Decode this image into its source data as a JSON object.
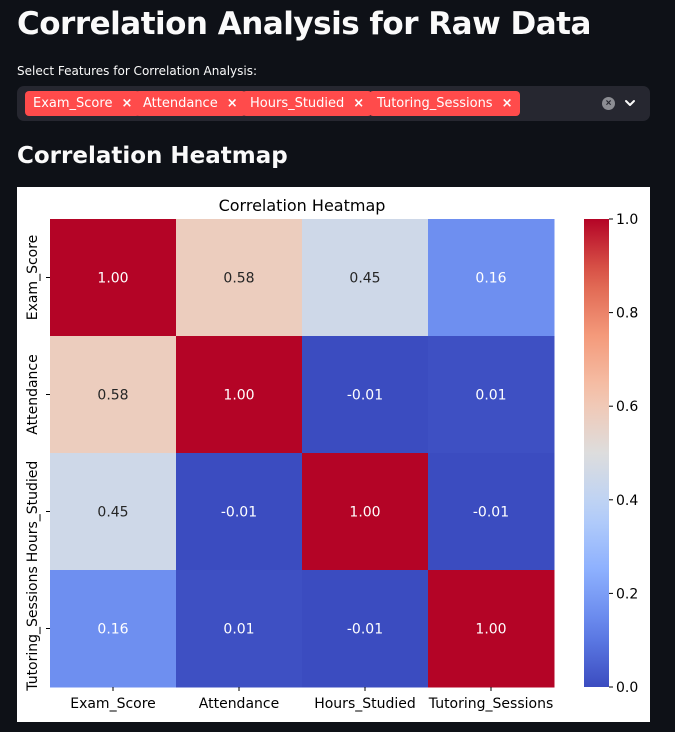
{
  "page": {
    "title": "Correlation Analysis for Raw Data"
  },
  "selector": {
    "label": "Select Features for Correlation Analysis:",
    "selected": [
      "Exam_Score",
      "Attendance",
      "Hours_Studied",
      "Tutoring_Sessions"
    ],
    "remove_glyph": "×",
    "clear_glyph": "×",
    "accent_color": "#ff4b4b",
    "clear_icon": "clear-all-icon",
    "dropdown_icon": "chevron-down-icon"
  },
  "section": {
    "heading": "Correlation Heatmap"
  },
  "chart_data": {
    "type": "heatmap",
    "title": "Correlation Heatmap",
    "xlabel": "",
    "ylabel": "",
    "x_categories": [
      "Exam_Score",
      "Attendance",
      "Hours_Studied",
      "Tutoring_Sessions"
    ],
    "y_categories": [
      "Exam_Score",
      "Attendance",
      "Hours_Studied",
      "Tutoring_Sessions"
    ],
    "values": [
      [
        1.0,
        0.58,
        0.45,
        0.16
      ],
      [
        0.58,
        1.0,
        -0.01,
        0.01
      ],
      [
        0.45,
        -0.01,
        1.0,
        -0.01
      ],
      [
        0.16,
        0.01,
        -0.01,
        1.0
      ]
    ],
    "annotations": [
      [
        "1.00",
        "0.58",
        "0.45",
        "0.16"
      ],
      [
        "0.58",
        "1.00",
        "-0.01",
        "0.01"
      ],
      [
        "0.45",
        "-0.01",
        "1.00",
        "-0.01"
      ],
      [
        "0.16",
        "0.01",
        "-0.01",
        "1.00"
      ]
    ],
    "colormap": "coolwarm",
    "colorbar": {
      "range": [
        0.0,
        1.0
      ],
      "ticks": [
        "0.0",
        "0.2",
        "0.4",
        "0.6",
        "0.8",
        "1.0"
      ],
      "position": "right"
    }
  }
}
